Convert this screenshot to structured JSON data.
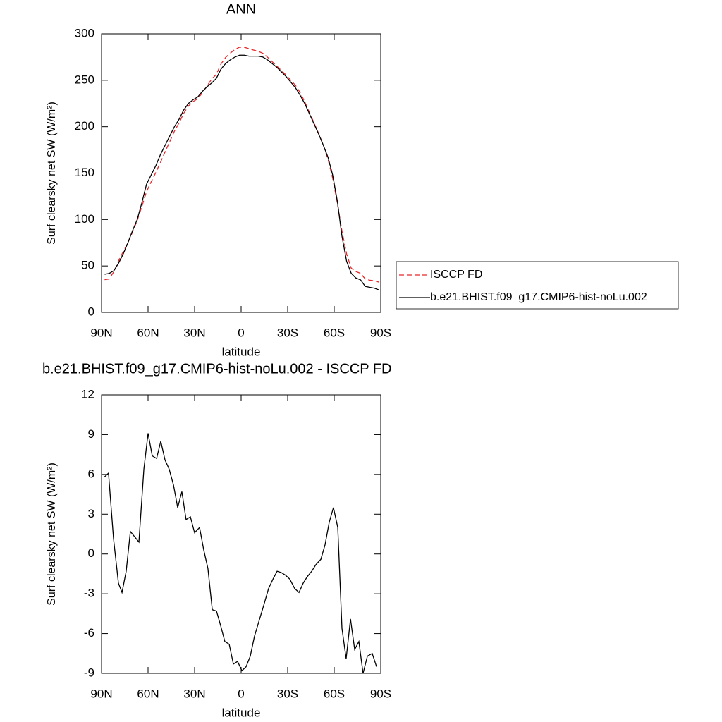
{
  "chart_data": [
    {
      "type": "line",
      "title": "ANN",
      "xlabel": "latitude",
      "ylabel": "Surf clearsky net SW (W/m²)",
      "x": [
        88,
        85,
        82,
        79,
        76,
        73,
        70,
        67,
        64,
        61,
        58,
        55,
        52,
        49,
        46,
        43,
        40,
        37,
        34,
        31,
        28,
        25,
        22,
        19,
        16,
        13,
        10,
        7,
        4,
        1,
        -2,
        -5,
        -8,
        -11,
        -14,
        -17,
        -20,
        -23,
        -26,
        -29,
        -32,
        -35,
        -38,
        -41,
        -44,
        -47,
        -50,
        -53,
        -56,
        -59,
        -62,
        -65,
        -68,
        -71,
        -74,
        -77,
        -80,
        -83,
        -86,
        -89
      ],
      "series": [
        {
          "name": "ISCCP FD",
          "color": "#e8262b",
          "line_style": "dashed",
          "values": [
            35.2,
            36,
            44,
            55.5,
            65.5,
            75,
            86.5,
            99,
            114,
            130,
            140.5,
            150.7,
            161.6,
            173,
            184,
            195.2,
            204.1,
            214.4,
            222.3,
            227,
            230.1,
            236.5,
            243.8,
            251.2,
            256.3,
            267.5,
            274.6,
            279.2,
            283.2,
            285.6,
            285.6,
            284,
            282.5,
            281.2,
            279.1,
            274.9,
            270,
            265.3,
            260.4,
            255.6,
            250,
            244.6,
            236.8,
            227,
            215.5,
            204,
            192.6,
            180,
            165,
            144.6,
            118,
            87.5,
            62.9,
            47.5,
            44,
            42,
            36,
            34.6,
            34,
            32.5
          ]
        },
        {
          "name": "b.e21.BHIST.f09_g17.CMIP6-hist-noLu.002",
          "color": "#000000",
          "line_style": "solid",
          "values": [
            41,
            42,
            45,
            53,
            63,
            75,
            88,
            100,
            118,
            138,
            148,
            158,
            170,
            180,
            190,
            200,
            208,
            218,
            225,
            229,
            232,
            238,
            243,
            247,
            252,
            262,
            268,
            272,
            275,
            277,
            277,
            276,
            276,
            276,
            275,
            272,
            268,
            264,
            259,
            254,
            248,
            242,
            234,
            225,
            214,
            203,
            192,
            180,
            167,
            148,
            120,
            82,
            55,
            42,
            37,
            35,
            28,
            27,
            26,
            24
          ]
        }
      ],
      "xlim": [
        90,
        -90
      ],
      "xticks": [
        {
          "value": 90,
          "label": "90N"
        },
        {
          "value": 60,
          "label": "60N"
        },
        {
          "value": 30,
          "label": "30N"
        },
        0,
        {
          "value": -30,
          "label": "30S"
        },
        {
          "value": -60,
          "label": "60S"
        },
        {
          "value": -90,
          "label": "90S"
        }
      ],
      "ylim": [
        0,
        300
      ],
      "yticks": [
        0,
        50,
        100,
        150,
        200,
        250,
        300
      ],
      "legend": "right"
    },
    {
      "type": "line",
      "title": "b.e21.BHIST.f09_g17.CMIP6-hist-noLu.002 - ISCCP FD",
      "xlabel": "latitude",
      "ylabel": "Surf clearsky net SW (W/m²)",
      "x": [
        88.2,
        85.5,
        82.3,
        79.1,
        76.8,
        74.1,
        71.4,
        65.9,
        62.7,
        60,
        57.3,
        54.5,
        51.8,
        49.1,
        46.4,
        43.6,
        40.9,
        38.2,
        35.5,
        32.7,
        30,
        26.8,
        24.1,
        21.4,
        18.6,
        15.9,
        13.2,
        10.5,
        7.7,
        5,
        2.3,
        -0.5,
        -3.2,
        -5.9,
        -8.6,
        -11.4,
        -14.5,
        -17.7,
        -20.5,
        -23.2,
        -25.9,
        -28.6,
        -31.4,
        -34.5,
        -37.3,
        -40,
        -42.7,
        -45.5,
        -48.2,
        -51.4,
        -54.1,
        -56.8,
        -59.5,
        -62.3,
        -65,
        -67.7,
        -70.5,
        -73.2,
        -75.9,
        -78.6,
        -81.4,
        -84.5,
        -87.3
      ],
      "color": "#000000",
      "values": [
        5.8,
        6.1,
        1.2,
        -2.2,
        -2.9,
        -1.3,
        1.7,
        0.9,
        6.4,
        9.1,
        7.4,
        7.2,
        8.5,
        7.1,
        6.4,
        5.2,
        3.5,
        4.7,
        2.6,
        2.8,
        1.6,
        2,
        0.3,
        -1.1,
        -4.2,
        -4.3,
        -5.4,
        -6.6,
        -6.8,
        -8.3,
        -8.1,
        -8.8,
        -8.5,
        -7.7,
        -6.2,
        -5.1,
        -3.9,
        -2.6,
        -1.9,
        -1.3,
        -1.4,
        -1.6,
        -1.9,
        -2.6,
        -2.9,
        -2.2,
        -1.7,
        -1.3,
        -0.8,
        -0.4,
        0.7,
        2.4,
        3.5,
        2,
        -5.6,
        -7.9,
        -4.9,
        -7.2,
        -6.6,
        -9,
        -7.7,
        -7.5,
        -8.5
      ],
      "xlim": [
        90,
        -90
      ],
      "xticks": [
        {
          "value": 90,
          "label": "90N"
        },
        {
          "value": 60,
          "label": "60N"
        },
        {
          "value": 30,
          "label": "30N"
        },
        0,
        {
          "value": -30,
          "label": "30S"
        },
        {
          "value": -60,
          "label": "60S"
        },
        {
          "value": -90,
          "label": "90S"
        }
      ],
      "ylim": [
        -9,
        12
      ],
      "yticks": [
        -9,
        -6,
        -3,
        0,
        3,
        6,
        9,
        12
      ]
    }
  ]
}
